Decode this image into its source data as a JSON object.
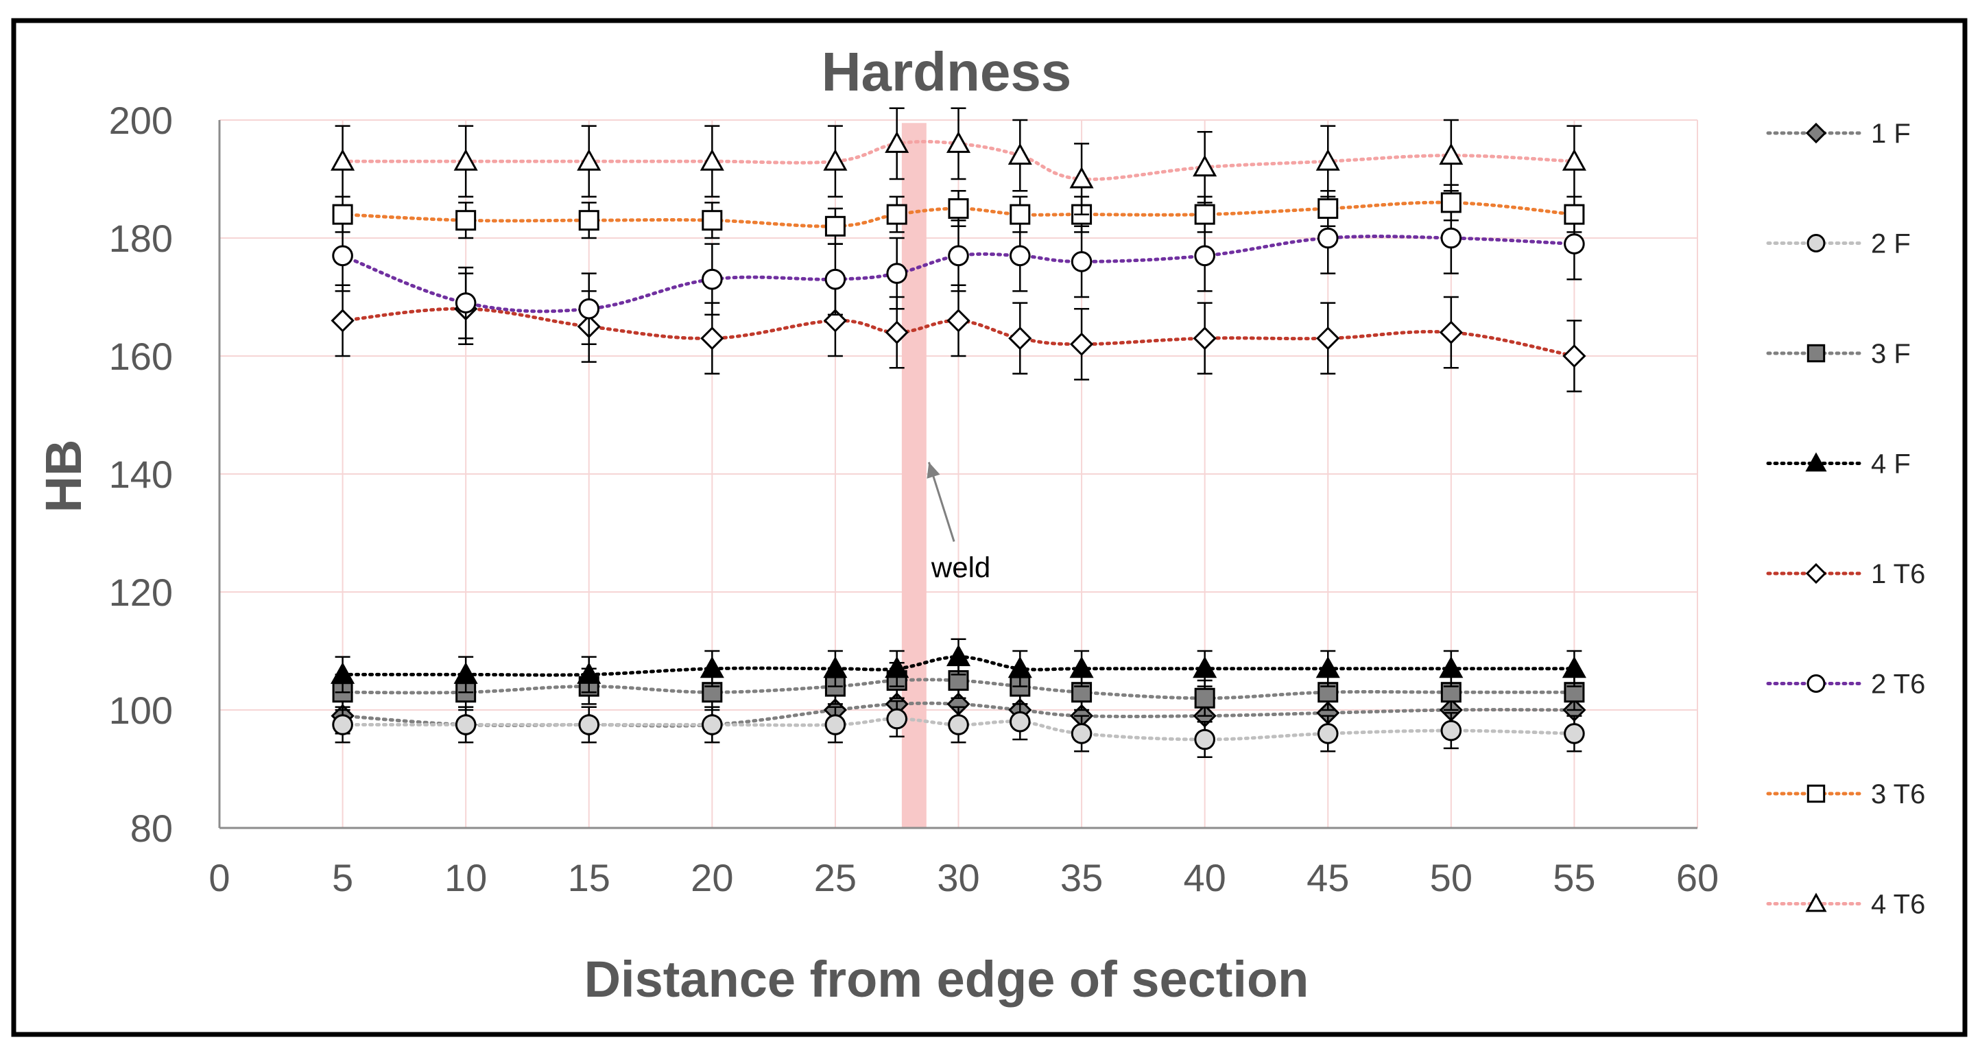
{
  "chart_data": {
    "type": "line",
    "title": "Hardness",
    "xlabel": "Distance from edge of section",
    "ylabel": "HB",
    "xlim": [
      0,
      60
    ],
    "ylim": [
      80,
      200
    ],
    "xticks": [
      0,
      5,
      10,
      15,
      20,
      25,
      30,
      35,
      40,
      45,
      50,
      55,
      60
    ],
    "yticks": [
      80,
      100,
      120,
      140,
      160,
      180,
      200
    ],
    "grid": true,
    "legend_position": "right",
    "weld_band": {
      "x_start": 27.7,
      "x_end": 28.7,
      "color": "#f8c8c8"
    },
    "annotations": [
      {
        "text": "weld",
        "x": 30.1,
        "y": 122.5,
        "arrow_to_x": 28.8,
        "arrow_to_y": 142.0
      }
    ],
    "x": [
      5,
      10,
      15,
      20,
      25,
      27.5,
      30,
      32.5,
      35,
      40,
      45,
      50,
      55
    ],
    "series": [
      {
        "name": "1 F",
        "marker": "diamond",
        "filled": true,
        "line_color": "#7f7f7f",
        "values": [
          99,
          97.5,
          97.5,
          97.5,
          100,
          101,
          101,
          100,
          99,
          99,
          99.5,
          100,
          100
        ]
      },
      {
        "name": "2 F",
        "marker": "circle",
        "filled": true,
        "line_color": "#bfbfbf",
        "values": [
          97.5,
          97.5,
          97.5,
          97.5,
          97.5,
          98.5,
          97.5,
          98,
          96,
          95,
          96,
          96.5,
          96
        ]
      },
      {
        "name": "3 F",
        "marker": "square",
        "filled": true,
        "line_color": "#808080",
        "values": [
          103,
          103,
          104,
          103,
          104,
          105,
          105,
          104,
          103,
          102,
          103,
          103,
          103
        ]
      },
      {
        "name": "4 F",
        "marker": "triangle",
        "filled": true,
        "line_color": "#000000",
        "values": [
          106,
          106,
          106,
          107,
          107,
          107,
          109,
          107,
          107,
          107,
          107,
          107,
          107
        ],
        "error": 3
      },
      {
        "name": "1 T6",
        "marker": "diamond",
        "filled": false,
        "line_color": "#c0392b",
        "values": [
          166,
          168,
          165,
          163,
          166,
          164,
          166,
          163,
          162,
          163,
          163,
          164,
          160
        ],
        "error": 6
      },
      {
        "name": "2 T6",
        "marker": "circle",
        "filled": false,
        "line_color": "#7030a0",
        "values": [
          177,
          169,
          168,
          173,
          173,
          174,
          177,
          177,
          176,
          177,
          180,
          180,
          179
        ],
        "error": 6
      },
      {
        "name": "3 T6",
        "marker": "square",
        "filled": false,
        "line_color": "#ed7d31",
        "values": [
          184,
          183,
          183,
          183,
          182,
          184,
          185,
          184,
          184,
          184,
          185,
          186,
          184
        ]
      },
      {
        "name": "4 T6",
        "marker": "triangle",
        "filled": false,
        "line_color": "#f4a3a3",
        "values": [
          193,
          193,
          193,
          193,
          193,
          196,
          196,
          194,
          190,
          192,
          193,
          194,
          193
        ],
        "error": 6
      }
    ]
  }
}
